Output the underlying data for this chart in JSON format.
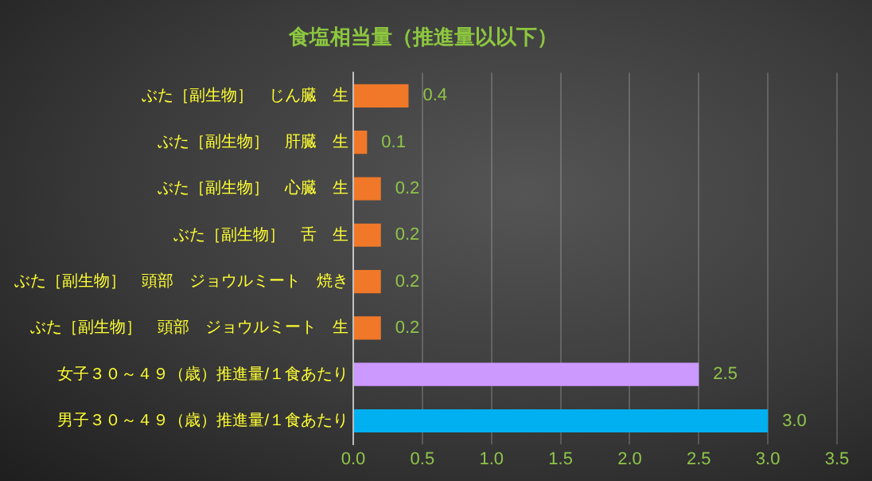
{
  "chart_data": {
    "type": "bar",
    "orientation": "horizontal",
    "title": "食塩相当量（推進量以以下）",
    "categories": [
      "ぶた［副生物］　じん臓　生",
      "ぶた［副生物］　肝臓　生",
      "ぶた［副生物］　心臓　生",
      "ぶた［副生物］　舌　生",
      "ぶた［副生物］　頭部　ジョウルミート　焼き",
      "ぶた［副生物］　頭部　ジョウルミート　生",
      "女子３０～４９（歳）推進量/１食あたり",
      "男子３０～４９（歳）推進量/１食あたり"
    ],
    "values": [
      0.4,
      0.1,
      0.2,
      0.2,
      0.2,
      0.2,
      2.5,
      3.0
    ],
    "value_labels": [
      "0.4",
      "0.1",
      "0.2",
      "0.2",
      "0.2",
      "0.2",
      "2.5",
      "3.0"
    ],
    "colors": [
      "#f07828",
      "#f07828",
      "#f07828",
      "#f07828",
      "#f07828",
      "#f07828",
      "#cc99ff",
      "#00b0f0"
    ],
    "xlim": [
      0,
      3.5
    ],
    "xticks": [
      {
        "value": 0,
        "label": "0.0"
      },
      {
        "value": 0.5,
        "label": "0.5"
      },
      {
        "value": 1,
        "label": "1.0"
      },
      {
        "value": 1.5,
        "label": "1.5"
      },
      {
        "value": 2,
        "label": "2.0"
      },
      {
        "value": 2.5,
        "label": "2.5"
      },
      {
        "value": 3,
        "label": "3.0"
      },
      {
        "value": 3.5,
        "label": "3.5"
      }
    ],
    "grid": "x",
    "legend": false
  }
}
